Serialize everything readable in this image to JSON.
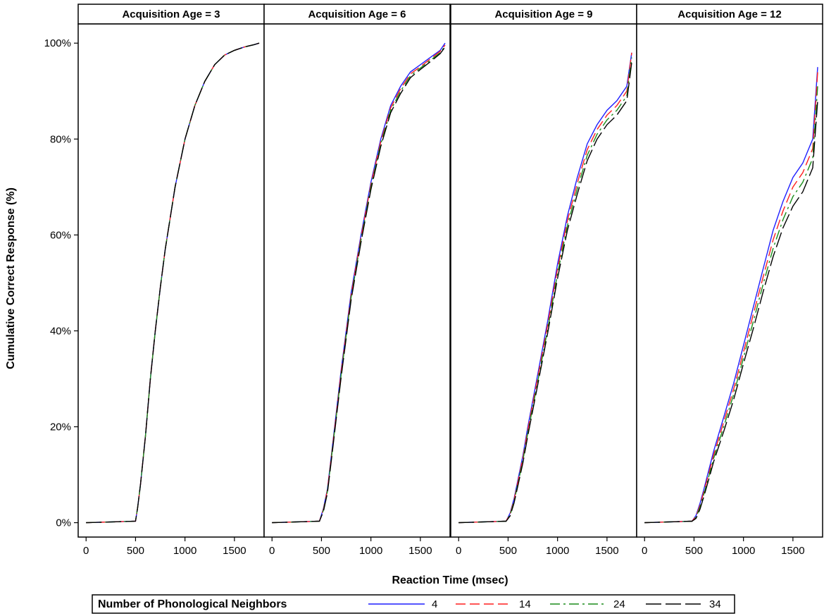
{
  "chart_data": {
    "type": "line",
    "ylabel": "Cumulative Correct Response (%)",
    "xlabel": "Reaction Time (msec)",
    "xlim": [
      -80,
      1800
    ],
    "ylim": [
      -3,
      104
    ],
    "x_ticks": [
      0,
      500,
      1000,
      1500
    ],
    "y_ticks": [
      0,
      20,
      40,
      60,
      80,
      100
    ],
    "y_tick_labels": [
      "0%",
      "20%",
      "40%",
      "60%",
      "80%",
      "100%"
    ],
    "grid": false,
    "legend": {
      "title": "Number of Phonological Neighbors",
      "position": "bottom",
      "entries": [
        {
          "label": "4",
          "color": "#1f1fff",
          "dash": "none"
        },
        {
          "label": "14",
          "color": "#ff1f1f",
          "dash": "14,6"
        },
        {
          "label": "24",
          "color": "#1a8c1a",
          "dash": "14,5,3,5"
        },
        {
          "label": "34",
          "color": "#000000",
          "dash": "22,6"
        }
      ]
    },
    "panels": [
      {
        "title": "Acquisition Age = 3",
        "series": [
          {
            "name": "4",
            "x": [
              0,
              500,
              520,
              550,
              600,
              650,
              700,
              750,
              800,
              900,
              1000,
              1100,
              1200,
              1300,
              1400,
              1500,
              1600,
              1700,
              1750
            ],
            "y": [
              0,
              0.3,
              3,
              8,
              18,
              30,
              40,
              49,
              57,
              70,
              80,
              87,
              92,
              95.5,
              97.5,
              98.5,
              99.2,
              99.7,
              100
            ]
          },
          {
            "name": "14",
            "x": [
              0,
              500,
              520,
              550,
              600,
              650,
              700,
              750,
              800,
              900,
              1000,
              1100,
              1200,
              1300,
              1400,
              1500,
              1600,
              1700,
              1750
            ],
            "y": [
              0,
              0.3,
              3,
              8,
              18,
              30,
              40,
              49,
              57,
              70,
              80,
              87,
              92,
              95.5,
              97.5,
              98.5,
              99.2,
              99.7,
              100
            ]
          },
          {
            "name": "24",
            "x": [
              0,
              500,
              520,
              550,
              600,
              650,
              700,
              750,
              800,
              900,
              1000,
              1100,
              1200,
              1300,
              1400,
              1500,
              1600,
              1700,
              1750
            ],
            "y": [
              0,
              0.3,
              3,
              8,
              18,
              30,
              40,
              49,
              57,
              70,
              80,
              87,
              92,
              95.5,
              97.5,
              98.5,
              99.2,
              99.7,
              100
            ]
          },
          {
            "name": "34",
            "x": [
              0,
              500,
              520,
              550,
              600,
              650,
              700,
              750,
              800,
              900,
              1000,
              1100,
              1200,
              1300,
              1400,
              1500,
              1600,
              1700,
              1750
            ],
            "y": [
              0,
              0.3,
              3,
              8,
              18,
              30,
              40,
              49,
              57,
              70,
              80,
              87,
              92,
              95.5,
              97.5,
              98.5,
              99.2,
              99.7,
              100
            ]
          }
        ]
      },
      {
        "title": "Acquisition Age = 6",
        "series": [
          {
            "name": "4",
            "x": [
              0,
              480,
              520,
              560,
              600,
              650,
              700,
              800,
              900,
              1000,
              1100,
              1200,
              1300,
              1400,
              1500,
              1600,
              1700,
              1750
            ],
            "y": [
              0,
              0.3,
              3,
              7,
              14,
              23,
              32,
              48,
              60,
              71,
              80,
              87,
              91,
              94,
              95.5,
              97,
              98.5,
              100
            ]
          },
          {
            "name": "14",
            "x": [
              0,
              480,
              520,
              560,
              600,
              650,
              700,
              800,
              900,
              1000,
              1100,
              1200,
              1300,
              1400,
              1500,
              1600,
              1700,
              1750
            ],
            "y": [
              0,
              0.3,
              2.8,
              6.8,
              13.7,
              22.6,
              31.5,
              47.5,
              59.5,
              70.5,
              79.5,
              86.5,
              90.5,
              93.6,
              95.1,
              96.7,
              98.3,
              99.6
            ]
          },
          {
            "name": "24",
            "x": [
              0,
              480,
              520,
              560,
              600,
              650,
              700,
              800,
              900,
              1000,
              1100,
              1200,
              1300,
              1400,
              1500,
              1600,
              1700,
              1750
            ],
            "y": [
              0,
              0.3,
              2.6,
              6.5,
              13.4,
              22.2,
              31,
              47,
              59,
              70,
              79,
              86,
              90,
              93.2,
              94.8,
              96.4,
              98,
              99.4
            ]
          },
          {
            "name": "34",
            "x": [
              0,
              480,
              520,
              560,
              600,
              650,
              700,
              800,
              900,
              1000,
              1100,
              1200,
              1300,
              1400,
              1500,
              1600,
              1700,
              1750
            ],
            "y": [
              0,
              0.3,
              2.4,
              6.2,
              13,
              21.8,
              30.5,
              46.5,
              58.5,
              69.5,
              78.5,
              85.5,
              89.5,
              92.8,
              94.5,
              96.1,
              97.8,
              99.2
            ]
          }
        ]
      },
      {
        "title": "Acquisition Age = 9",
        "series": [
          {
            "name": "4",
            "x": [
              0,
              480,
              520,
              560,
              600,
              650,
              700,
              800,
              900,
              1000,
              1100,
              1200,
              1300,
              1400,
              1500,
              1600,
              1700,
              1750
            ],
            "y": [
              0,
              0.3,
              2,
              5,
              9,
              14,
              20,
              31,
              42,
              54,
              64,
              72,
              79,
              83,
              86,
              88,
              91,
              98
            ]
          },
          {
            "name": "14",
            "x": [
              0,
              480,
              520,
              560,
              600,
              650,
              700,
              800,
              900,
              1000,
              1100,
              1200,
              1300,
              1400,
              1500,
              1600,
              1700,
              1750
            ],
            "y": [
              0,
              0.3,
              1.8,
              4.7,
              8.6,
              13.5,
              19.4,
              30.3,
              41.2,
              53,
              63,
              70.8,
              77.8,
              82,
              85,
              87,
              90,
              98
            ]
          },
          {
            "name": "24",
            "x": [
              0,
              480,
              520,
              560,
              600,
              650,
              700,
              800,
              900,
              1000,
              1100,
              1200,
              1300,
              1400,
              1500,
              1600,
              1700,
              1750
            ],
            "y": [
              0,
              0.3,
              1.6,
              4.4,
              8.2,
              13,
              18.8,
              29.5,
              40.3,
              52,
              62,
              69.6,
              76.6,
              81,
              84,
              86,
              89,
              97
            ]
          },
          {
            "name": "34",
            "x": [
              0,
              480,
              520,
              560,
              600,
              650,
              700,
              800,
              900,
              1000,
              1100,
              1200,
              1300,
              1400,
              1500,
              1600,
              1700,
              1750
            ],
            "y": [
              0,
              0.3,
              1.4,
              4.1,
              7.8,
              12.5,
              18.2,
              28.8,
              39.5,
              51,
              61,
              68.5,
              75.5,
              80,
              83,
              85,
              88,
              96
            ]
          }
        ]
      },
      {
        "title": "Acquisition Age = 12",
        "series": [
          {
            "name": "4",
            "x": [
              0,
              480,
              520,
              560,
              600,
              650,
              700,
              800,
              900,
              1000,
              1100,
              1200,
              1300,
              1400,
              1500,
              1600,
              1700,
              1750
            ],
            "y": [
              0,
              0.3,
              1.5,
              4,
              7,
              11,
              15,
              22,
              29,
              37,
              45,
              53,
              61,
              67,
              72,
              75,
              80,
              95
            ]
          },
          {
            "name": "14",
            "x": [
              0,
              480,
              520,
              560,
              600,
              650,
              700,
              800,
              900,
              1000,
              1100,
              1200,
              1300,
              1400,
              1500,
              1600,
              1700,
              1750
            ],
            "y": [
              0,
              0.3,
              1.3,
              3.6,
              6.5,
              10.3,
              14.2,
              21,
              27.8,
              35.6,
              43.5,
              51.3,
              59,
              65,
              70,
              73,
              78,
              94
            ]
          },
          {
            "name": "24",
            "x": [
              0,
              480,
              520,
              560,
              600,
              650,
              700,
              800,
              900,
              1000,
              1100,
              1200,
              1300,
              1400,
              1500,
              1600,
              1700,
              1750
            ],
            "y": [
              0,
              0.3,
              1.1,
              3.2,
              6,
              9.7,
              13.5,
              20,
              26.7,
              34.4,
              42,
              49.8,
              57.2,
              63.2,
              68,
              71,
              76,
              91
            ]
          },
          {
            "name": "34",
            "x": [
              0,
              480,
              520,
              560,
              600,
              650,
              700,
              800,
              900,
              1000,
              1100,
              1200,
              1300,
              1400,
              1500,
              1600,
              1700,
              1750
            ],
            "y": [
              0,
              0.3,
              0.9,
              2.8,
              5.5,
              9.1,
              12.8,
              19,
              25.6,
              33.2,
              40.5,
              48.2,
              55.5,
              61.5,
              66,
              69,
              74,
              88
            ]
          }
        ]
      }
    ]
  }
}
